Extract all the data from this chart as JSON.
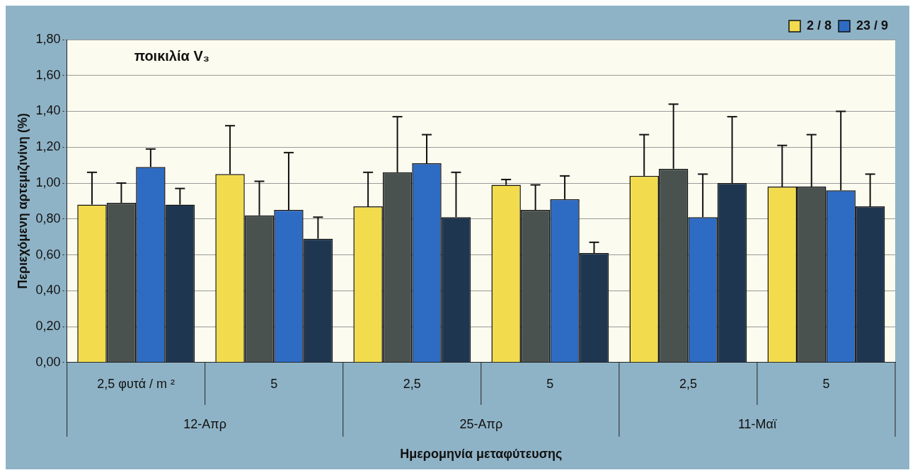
{
  "chart_data": {
    "type": "bar",
    "title": "ποικιλία V₃",
    "ylabel": "Περιεχόμενη αρτεμιζινίνη (%)",
    "xlabel": "Ημερομηνία μεταφύτευσης",
    "categories": [
      "2,5 φυτά / m ²",
      "5",
      "2,5",
      "5",
      "2,5",
      "5"
    ],
    "annotations": [
      "12-Απρ",
      "25-Απρ",
      "11-Μαϊ"
    ],
    "series": [
      {
        "name": "2 / 8",
        "color": "#f2dc4e",
        "values": [
          0.88,
          1.05,
          0.87,
          0.99,
          1.04,
          0.98
        ],
        "errors": [
          [
            0.88,
            1.06
          ],
          [
            1.05,
            1.32
          ],
          [
            0.87,
            1.06
          ],
          [
            0.99,
            1.02
          ],
          [
            1.04,
            1.27
          ],
          [
            0.98,
            1.21
          ]
        ]
      },
      {
        "color": "#4a5250",
        "values": [
          0.89,
          0.82,
          1.06,
          0.85,
          1.08,
          0.98
        ],
        "errors": [
          [
            0.89,
            1.0
          ],
          [
            0.82,
            1.01
          ],
          [
            1.06,
            1.37
          ],
          [
            0.85,
            0.99
          ],
          [
            1.08,
            1.44
          ],
          [
            0.98,
            1.27
          ]
        ]
      },
      {
        "name": "23 / 9",
        "color": "#2e6cc4",
        "values": [
          1.09,
          0.85,
          1.11,
          0.91,
          0.81,
          0.96
        ],
        "errors": [
          [
            1.09,
            1.19
          ],
          [
            0.85,
            1.17
          ],
          [
            1.11,
            1.27
          ],
          [
            0.91,
            1.04
          ],
          [
            0.81,
            1.05
          ],
          [
            0.96,
            1.4
          ]
        ]
      },
      {
        "color": "#1f3650",
        "values": [
          0.88,
          0.69,
          0.81,
          0.61,
          1.0,
          0.87
        ],
        "errors": [
          [
            0.88,
            0.97
          ],
          [
            0.69,
            0.81
          ],
          [
            0.81,
            1.06
          ],
          [
            0.61,
            0.67
          ],
          [
            1.0,
            1.37
          ],
          [
            0.87,
            1.05
          ]
        ]
      }
    ],
    "ylim": [
      0,
      1.8
    ],
    "yticks": [
      {
        "value": 0,
        "label": "0,00"
      },
      {
        "value": 0.2,
        "label": "0,20"
      },
      {
        "value": 0.4,
        "label": "0,40"
      },
      {
        "value": 0.6,
        "label": "0,60"
      },
      {
        "value": 0.8,
        "label": "0,80"
      },
      {
        "value": 1,
        "label": "1,00"
      },
      {
        "value": 1.2,
        "label": "1,20"
      },
      {
        "value": 1.4,
        "label": "1,40"
      },
      {
        "value": 1.6,
        "label": "1,60"
      },
      {
        "value": 1.8,
        "label": "1,80"
      }
    ],
    "grid": "y",
    "legend": "top right"
  }
}
